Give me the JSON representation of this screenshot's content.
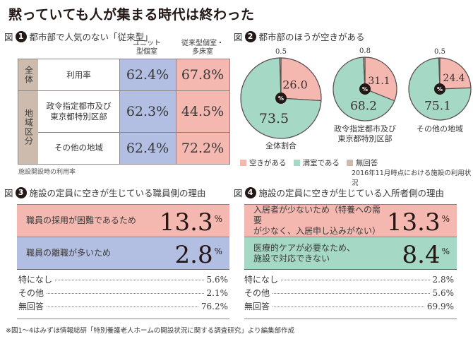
{
  "title": "黙っていても人が集まる時代は終わった",
  "fig1": {
    "zu": "図",
    "num": "1",
    "heading": "都市部で人気のない「従来型」",
    "col_headers": [
      "ユニット\n型個室",
      "従来型個室・\n多床室"
    ],
    "col_header_lines": [
      [
        "ユニット",
        "型個室"
      ],
      [
        "従来型個室・",
        "多床室"
      ]
    ],
    "groups": [
      "全体",
      "地域区分"
    ],
    "rows": [
      {
        "label": [
          "利用率"
        ],
        "unit": "62.4%",
        "conventional": "67.8%"
      },
      {
        "label": [
          "政令指定都市及び",
          "東京都特別区部"
        ],
        "unit": "62.3%",
        "conventional": "44.5%"
      },
      {
        "label": [
          "その他の地域"
        ],
        "unit": "62.4%",
        "conventional": "72.2%"
      }
    ],
    "note": "施設開設時の利用率",
    "colors": {
      "unit": "#b3bfe2",
      "conventional": "#f4b8b0",
      "group": "#cdbcae"
    }
  },
  "fig2": {
    "zu": "図",
    "num": "2",
    "heading": "都市部のほうが空きがある",
    "center_label": "%",
    "legend": [
      {
        "label": "空きがある",
        "color": "#f4b8b0"
      },
      {
        "label": "満室である",
        "color": "#a5d8c5"
      },
      {
        "label": "無回答",
        "color": "#cdbcae"
      }
    ],
    "note": "2016年11月時点における施設の利用状況"
  },
  "chart_data": {
    "type": "pie",
    "title": "都市部のほうが空きがある",
    "categories": [
      "空きがある",
      "満室である",
      "無回答"
    ],
    "colors": [
      "#f4b8b0",
      "#a5d8c5",
      "#cdbcae"
    ],
    "series": [
      {
        "name": "全体割合",
        "name_lines": [
          "全体割合"
        ],
        "values": [
          26.0,
          73.5,
          0.5
        ],
        "labels": [
          "26.0",
          "73.5",
          "0.5"
        ]
      },
      {
        "name": "政令指定都市及び東京都特別区部",
        "name_lines": [
          "政令指定都市及び",
          "東京都特別区部"
        ],
        "values": [
          31.1,
          68.2,
          0.8
        ],
        "labels": [
          "31.1",
          "68.2",
          "0.8"
        ]
      },
      {
        "name": "その他の地域",
        "name_lines": [
          "その他の地域"
        ],
        "values": [
          24.4,
          75.1,
          0.5
        ],
        "labels": [
          "24.4",
          "75.1",
          "0.5"
        ]
      }
    ],
    "unit": "%",
    "legend_position": "bottom-left"
  },
  "fig3": {
    "zu": "図",
    "num": "3",
    "heading": "施設の定員に空きが生じている職員側の理由",
    "highlights": [
      {
        "label": [
          "職員の採用が困難であるため"
        ],
        "value": "13.3",
        "unit": "%",
        "color": "#f4b8b0"
      },
      {
        "label": [
          "職員の離職が多いため"
        ],
        "value": "2.8",
        "unit": "%",
        "color": "#b3bfe2"
      }
    ],
    "list": [
      {
        "label": "特になし",
        "value": "5.6%"
      },
      {
        "label": "その他",
        "value": "2.1%"
      },
      {
        "label": "無回答",
        "value": "76.2%"
      }
    ]
  },
  "fig4": {
    "zu": "図",
    "num": "4",
    "heading": "施設の定員に空きが生じている入所者側の理由",
    "highlights": [
      {
        "label": [
          "入居者が少ないため（特養への需要",
          "が少なく、入居申し込みがない）"
        ],
        "value": "13.3",
        "unit": "%",
        "color": "#f4b8b0"
      },
      {
        "label": [
          "医療的ケアが必要なため、",
          "施設で対応できない"
        ],
        "value": "8.4",
        "unit": "%",
        "color": "#a5d8c5"
      }
    ],
    "list": [
      {
        "label": "特になし",
        "value": "2.8%"
      },
      {
        "label": "その他",
        "value": "5.6%"
      },
      {
        "label": "無回答",
        "value": "69.9%"
      }
    ]
  },
  "footnote": "※図1〜4はみずほ情報総研「特別養護老人ホームの開設状況に関する調査研究」より編集部作成"
}
